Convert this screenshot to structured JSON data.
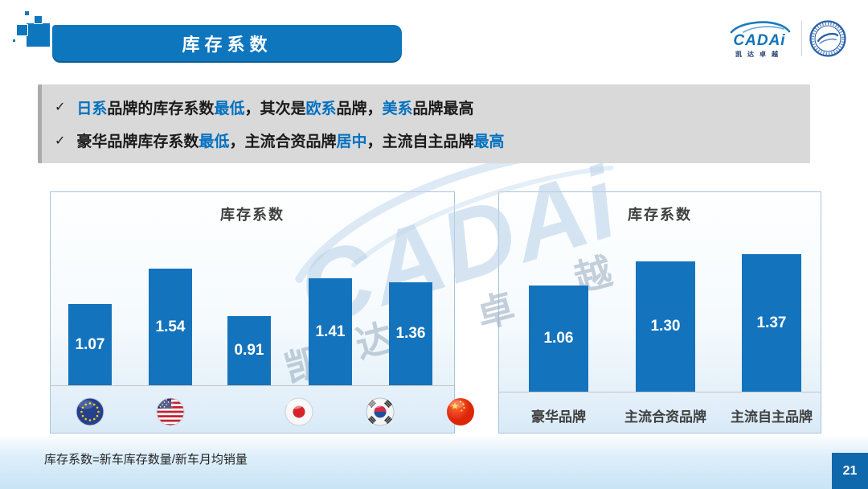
{
  "page": {
    "title_banner": "库存系数",
    "footnote": "库存系数=新车库存数量/新车月均销量",
    "page_number": "21"
  },
  "logo": {
    "brand": "CADAi",
    "brand_sub": "凯达卓越",
    "emblem": "round-institute-seal"
  },
  "bullets": [
    {
      "check": "✓",
      "segments": [
        {
          "text": "日系",
          "em": true
        },
        {
          "text": "品牌的库存系数",
          "em": false
        },
        {
          "text": "最低",
          "em": true
        },
        {
          "text": "，其次是",
          "em": false
        },
        {
          "text": "欧系",
          "em": true
        },
        {
          "text": "品牌，",
          "em": false
        },
        {
          "text": "美系",
          "em": true
        },
        {
          "text": "品牌最高",
          "em": false
        }
      ]
    },
    {
      "check": "✓",
      "segments": [
        {
          "text": "豪华品牌库存系数",
          "em": false
        },
        {
          "text": "最低",
          "em": true
        },
        {
          "text": "，主流合资品牌",
          "em": false
        },
        {
          "text": "居中",
          "em": true
        },
        {
          "text": "，主流自主品牌",
          "em": false
        },
        {
          "text": "最高",
          "em": true
        }
      ]
    }
  ],
  "watermark": {
    "text": "CADAi",
    "chars": [
      "凯",
      "达",
      "卓",
      "越"
    ]
  },
  "chart_data": [
    {
      "type": "bar",
      "title": "库存系数",
      "categories": [
        "欧系",
        "美系",
        "日系",
        "韩系",
        "中国"
      ],
      "category_icons": [
        "eu-flag-icon",
        "us-flag-icon",
        "japan-flag-icon",
        "korea-flag-icon",
        "china-flag-icon"
      ],
      "values": [
        1.07,
        1.54,
        0.91,
        1.41,
        1.36
      ],
      "value_labels": [
        "1.07",
        "1.54",
        "0.91",
        "1.41",
        "1.36"
      ],
      "xlabel": "",
      "ylabel": "",
      "ylim": [
        0,
        1.7
      ],
      "grid": false,
      "legend": "none",
      "bar_color": "#1473bd",
      "value_label_position": "inside-center"
    },
    {
      "type": "bar",
      "title": "库存系数",
      "categories": [
        "豪华品牌",
        "主流合资品牌",
        "主流自主品牌"
      ],
      "values": [
        1.06,
        1.3,
        1.37
      ],
      "value_labels": [
        "1.06",
        "1.30",
        "1.37"
      ],
      "xlabel": "",
      "ylabel": "",
      "ylim": [
        0,
        1.6
      ],
      "grid": false,
      "legend": "none",
      "bar_color": "#1473bd",
      "value_label_position": "inside-center"
    }
  ],
  "colors": {
    "accent_blue": "#0e76bd",
    "bar_blue": "#1473bd",
    "emphasis_text": "#0070c0",
    "summary_bg": "#d9d9d9",
    "chart_border": "#a7c4dd",
    "badge_blue": "#1068ac"
  }
}
